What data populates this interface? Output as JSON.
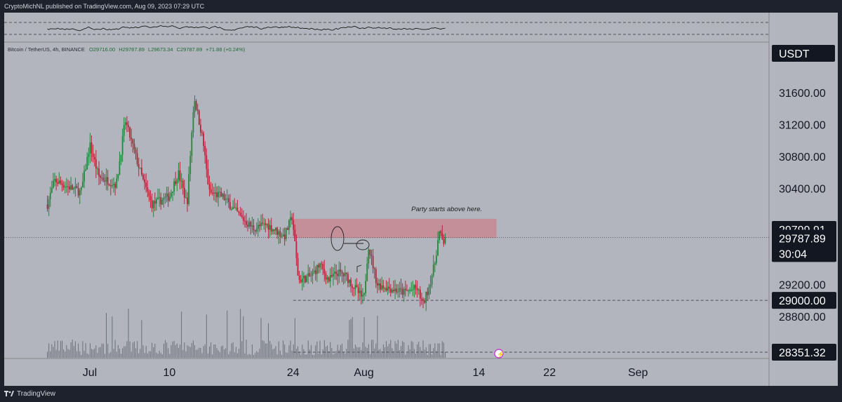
{
  "header": {
    "published": "CryptoMichNL published on TradingView.com, Aug 09, 2023 07:29 UTC"
  },
  "footer": {
    "brand": "TradingView"
  },
  "colors": {
    "background": "#b2b5be",
    "up": "#1f8a3a",
    "down": "#b7243a",
    "zone": "#c9838c",
    "label_bg": "#131722",
    "annotation": "#202020"
  },
  "chart_data": {
    "type": "candlestick",
    "symbol_line": "Bitcoin / TetherUS, 4h, BINANCE",
    "ohlc_line": {
      "open": "O29716.00",
      "high": "H29787.89",
      "low": "L29673.34",
      "close": "C29787.89",
      "change": "+71.88 (+0.24%)"
    },
    "currency": "USDT",
    "ylim": [
      28351.32,
      31950
    ],
    "yticks": [
      "31600.00",
      "31200.00",
      "30800.00",
      "30400.00",
      "29200.00",
      "28800.00"
    ],
    "xticks": [
      {
        "label": "Jul",
        "day": 1
      },
      {
        "label": "10",
        "day": 10
      },
      {
        "label": "24",
        "day": 24
      },
      {
        "label": "Aug",
        "day": 32
      },
      {
        "label": "14",
        "day": 45
      },
      {
        "label": "22",
        "day": 53
      },
      {
        "label": "Sep",
        "day": 63
      }
    ],
    "price_labels": [
      {
        "value": 29799.91,
        "text": "29799.91"
      },
      {
        "value": 29787.89,
        "text": "29787.89",
        "countdown": "30:04"
      },
      {
        "value": 29000.0,
        "text": "29000.00"
      },
      {
        "value": 28351.32,
        "text": "28351.32"
      }
    ],
    "resistance_zone": {
      "low": 29780,
      "high": 30020,
      "start_day": 24,
      "end_day": 47
    },
    "annotation": {
      "text": "Party starts above here.",
      "day": 41.5,
      "price": 30150
    },
    "horizontal_lines": [
      29787.89,
      29000.0,
      28351.32
    ],
    "anchors": [
      {
        "day": -3.8,
        "price": 30200
      },
      {
        "day": -3,
        "price": 30500
      },
      {
        "day": 0,
        "price": 30350
      },
      {
        "day": 1,
        "price": 30950
      },
      {
        "day": 2,
        "price": 30550
      },
      {
        "day": 4,
        "price": 30450
      },
      {
        "day": 5,
        "price": 31250
      },
      {
        "day": 7,
        "price": 30500
      },
      {
        "day": 8,
        "price": 30200
      },
      {
        "day": 10,
        "price": 30300
      },
      {
        "day": 11,
        "price": 30600
      },
      {
        "day": 12,
        "price": 30200
      },
      {
        "day": 12.8,
        "price": 31550
      },
      {
        "day": 13.8,
        "price": 31000
      },
      {
        "day": 14.5,
        "price": 30350
      },
      {
        "day": 16,
        "price": 30300
      },
      {
        "day": 18,
        "price": 30050
      },
      {
        "day": 19.5,
        "price": 29900
      },
      {
        "day": 21,
        "price": 29950
      },
      {
        "day": 23,
        "price": 29800
      },
      {
        "day": 23.9,
        "price": 30050
      },
      {
        "day": 24.2,
        "price": 29700
      },
      {
        "day": 24.6,
        "price": 29250
      },
      {
        "day": 26,
        "price": 29300
      },
      {
        "day": 27,
        "price": 29450
      },
      {
        "day": 28,
        "price": 29250
      },
      {
        "day": 29,
        "price": 29350
      },
      {
        "day": 30,
        "price": 29300
      },
      {
        "day": 31,
        "price": 29150
      },
      {
        "day": 32,
        "price": 29000
      },
      {
        "day": 32.5,
        "price": 29700
      },
      {
        "day": 33.5,
        "price": 29200
      },
      {
        "day": 35,
        "price": 29150
      },
      {
        "day": 36.5,
        "price": 29100
      },
      {
        "day": 38,
        "price": 29150
      },
      {
        "day": 38.7,
        "price": 28950
      },
      {
        "day": 39.3,
        "price": 29150
      },
      {
        "day": 40,
        "price": 29450
      },
      {
        "day": 40.5,
        "price": 29850
      },
      {
        "day": 41,
        "price": 29716
      },
      {
        "day": 41.2,
        "price": 29787.89
      }
    ],
    "rsi_indicator": {
      "upper_band": 70,
      "lower_band": 30
    }
  }
}
